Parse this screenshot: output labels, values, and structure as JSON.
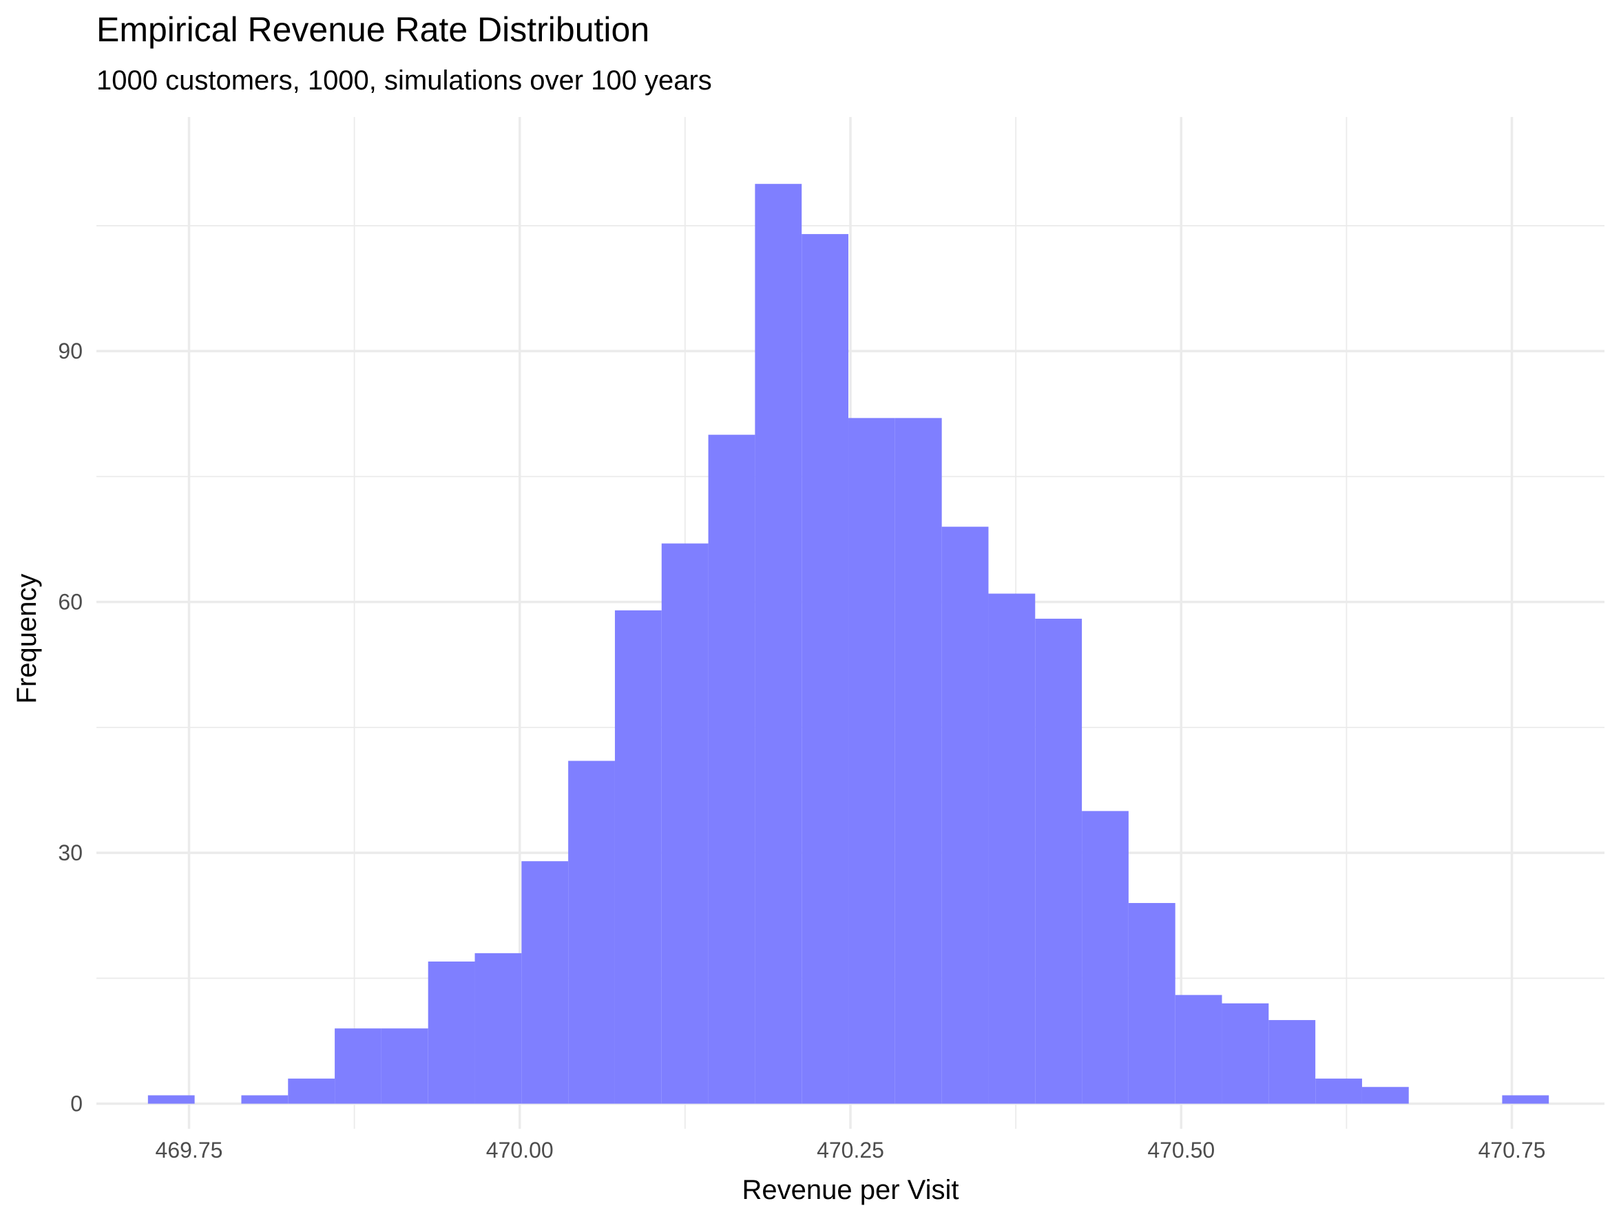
{
  "chart_data": {
    "type": "bar",
    "subtype": "histogram",
    "title": "Empirical Revenue Rate Distribution",
    "subtitle": "1000 customers, 1000, simulations over 100 years",
    "xlabel": "Revenue per Visit",
    "ylabel": "Frequency",
    "xlim": [
      469.68,
      470.82
    ],
    "ylim": [
      -3,
      118
    ],
    "x_ticks": [
      469.75,
      470.0,
      470.25,
      470.5,
      470.75
    ],
    "x_tick_labels": [
      "469.75",
      "470.00",
      "470.25",
      "470.50",
      "470.75"
    ],
    "y_ticks": [
      0,
      30,
      60,
      90
    ],
    "y_tick_labels": [
      "0",
      "30",
      "60",
      "90"
    ],
    "grid": true,
    "legend": "none",
    "bar_color": "#7f7fff",
    "bin_width": 0.03529,
    "bins": [
      {
        "x": 469.7366,
        "count": 1
      },
      {
        "x": 469.7719,
        "count": 0
      },
      {
        "x": 469.8072,
        "count": 1
      },
      {
        "x": 469.8425,
        "count": 3
      },
      {
        "x": 469.8778,
        "count": 9
      },
      {
        "x": 469.9131,
        "count": 9
      },
      {
        "x": 469.9484,
        "count": 17
      },
      {
        "x": 469.9837,
        "count": 18
      },
      {
        "x": 470.019,
        "count": 29
      },
      {
        "x": 470.0543,
        "count": 41
      },
      {
        "x": 470.0896,
        "count": 59
      },
      {
        "x": 470.1249,
        "count": 67
      },
      {
        "x": 470.1602,
        "count": 80
      },
      {
        "x": 470.1955,
        "count": 110
      },
      {
        "x": 470.2308,
        "count": 104
      },
      {
        "x": 470.2661,
        "count": 82
      },
      {
        "x": 470.3014,
        "count": 82
      },
      {
        "x": 470.3367,
        "count": 69
      },
      {
        "x": 470.372,
        "count": 61
      },
      {
        "x": 470.4073,
        "count": 58
      },
      {
        "x": 470.4426,
        "count": 35
      },
      {
        "x": 470.4779,
        "count": 24
      },
      {
        "x": 470.5132,
        "count": 13
      },
      {
        "x": 470.5485,
        "count": 12
      },
      {
        "x": 470.5838,
        "count": 10
      },
      {
        "x": 470.6191,
        "count": 3
      },
      {
        "x": 470.6544,
        "count": 2
      },
      {
        "x": 470.6897,
        "count": 0
      },
      {
        "x": 470.725,
        "count": 0
      },
      {
        "x": 470.7603,
        "count": 1
      }
    ]
  }
}
